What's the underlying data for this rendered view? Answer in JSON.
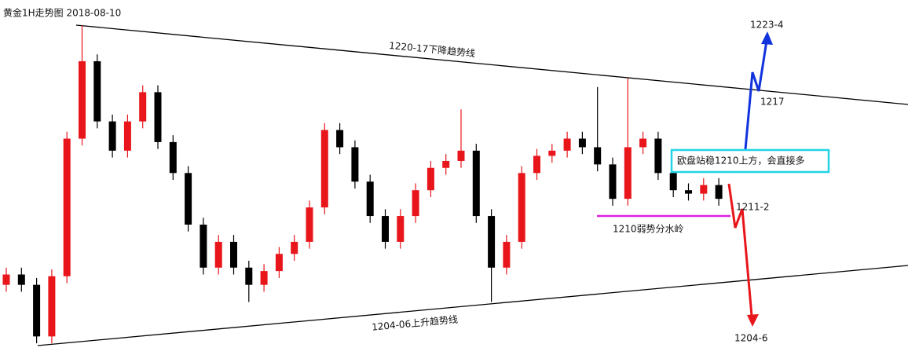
{
  "chart_data": {
    "type": "candlestick",
    "title": "黄金1H走势图 2018-08-10",
    "ylim": [
      1201.92,
      1222.56
    ],
    "up_color": "#e8151b",
    "down_color": "#000000",
    "open": [
      1206.0,
      1206.6,
      1206.0,
      1203.0,
      1206.5,
      1214.5,
      1219.0,
      1215.5,
      1213.8,
      1215.5,
      1217.2,
      1214.3,
      1212.5,
      1209.5,
      1207.0,
      1208.5,
      1207.0,
      1206.0,
      1206.8,
      1207.8,
      1208.5,
      1210.5,
      1215.0,
      1214.0,
      1212.0,
      1210.0,
      1208.5,
      1210.0,
      1211.5,
      1212.8,
      1213.2,
      1213.8,
      1210.0,
      1207.0,
      1208.5,
      1212.5,
      1213.5,
      1213.8,
      1214.5,
      1214.0,
      1213.0,
      1211.0,
      1214.0,
      1214.5,
      1212.5,
      1211.5,
      1211.3,
      1211.8
    ],
    "high": [
      1207.0,
      1207.0,
      1206.4,
      1206.9,
      1214.9,
      1221.1,
      1219.4,
      1215.9,
      1215.9,
      1217.6,
      1217.6,
      1214.7,
      1212.9,
      1209.9,
      1208.9,
      1208.9,
      1207.4,
      1207.2,
      1208.2,
      1208.9,
      1210.9,
      1215.4,
      1215.4,
      1214.4,
      1212.4,
      1210.4,
      1210.4,
      1211.9,
      1213.2,
      1213.6,
      1216.2,
      1214.2,
      1210.4,
      1208.9,
      1212.9,
      1213.9,
      1214.2,
      1214.9,
      1214.9,
      1217.5,
      1213.4,
      1218.0,
      1214.9,
      1214.9,
      1212.9,
      1211.9,
      1212.2,
      1212.2
    ],
    "low": [
      1205.6,
      1205.6,
      1202.6,
      1202.6,
      1206.1,
      1214.1,
      1215.1,
      1213.4,
      1213.4,
      1215.1,
      1213.9,
      1212.1,
      1209.1,
      1206.6,
      1206.6,
      1206.6,
      1205.0,
      1205.6,
      1206.4,
      1207.4,
      1208.1,
      1210.1,
      1213.6,
      1211.6,
      1209.6,
      1208.1,
      1208.1,
      1209.6,
      1211.1,
      1212.4,
      1212.8,
      1209.6,
      1205.0,
      1206.6,
      1208.1,
      1212.1,
      1213.1,
      1213.4,
      1213.6,
      1212.6,
      1210.6,
      1210.6,
      1213.6,
      1212.1,
      1211.1,
      1210.9,
      1210.9,
      1210.6
    ],
    "close": [
      1206.6,
      1206.0,
      1203.0,
      1206.5,
      1214.5,
      1219.0,
      1215.5,
      1213.8,
      1215.5,
      1217.2,
      1214.3,
      1212.5,
      1209.5,
      1207.0,
      1208.5,
      1207.0,
      1206.0,
      1206.8,
      1207.8,
      1208.5,
      1210.5,
      1215.0,
      1214.0,
      1212.0,
      1210.0,
      1208.5,
      1210.0,
      1211.5,
      1212.8,
      1213.2,
      1213.8,
      1210.0,
      1207.0,
      1208.5,
      1212.5,
      1213.5,
      1213.8,
      1214.5,
      1214.0,
      1213.0,
      1211.0,
      1214.0,
      1214.5,
      1212.5,
      1211.5,
      1211.3,
      1211.8,
      1211.0
    ],
    "annotations": {
      "downtrend": "1220-17下降趋势线",
      "uptrend": "1204-06上升趋势线",
      "watershed": "1210弱势分水岭",
      "box": "欧盘站稳1210上方，会直接多",
      "target_up_1": "1217",
      "target_up_2": "1223-4",
      "target_down_1": "1211-2",
      "target_down_2": "1204-6"
    }
  }
}
